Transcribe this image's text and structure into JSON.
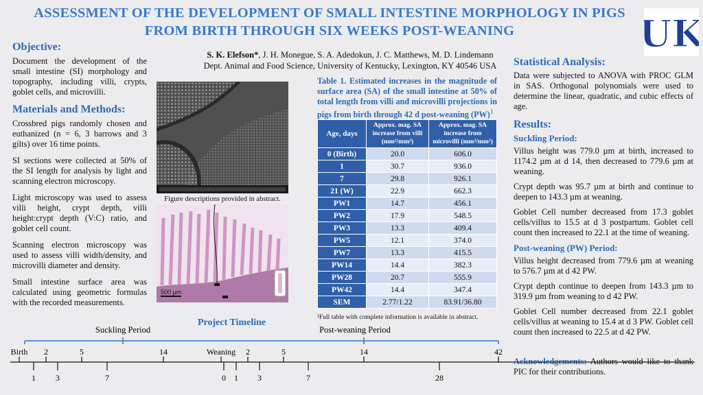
{
  "title": "ASSESSMENT OF THE DEVELOPMENT OF SMALL INTESTINE MORPHOLOGY IN PIGS FROM BIRTH THROUGH SIX WEEKS POST-WEANING",
  "authors": {
    "first_author": "S. K. Elefson*",
    "other_authors": ", J. H. Monegue, S. A. Adedokun, J. C. Matthews, M. D. Lindemann",
    "affiliation": "Dept. Animal and Food Science, University of Kentucky, Lexington, KY 40546 USA"
  },
  "logo_text": "UK",
  "objective": {
    "heading": "Objective:",
    "text": "Document the development of the small intestine (SI) morphology and topography, including villi, crypts, goblet cells, and microvilli."
  },
  "methods": {
    "heading": "Materials and Methods:",
    "paragraphs": [
      "Crossbred pigs randomly chosen and euthanized (n = 6, 3 barrows and 3 gilts) over 16 time points.",
      "SI sections were collected at 50% of the SI length for analysis by light and scanning electron microscopy.",
      "Light microscopy was used to assess villi height, crypt depth, villi height:crypt depth (V:C) ratio, and goblet cell count.",
      "Scanning electron microscopy was used to assess villi width/density, and microvilli diameter and density.",
      "Small intestine surface area was calculated using geometric formulas with the recorded measurements."
    ]
  },
  "figure": {
    "caption": "Figure descriptions provided in abstract.",
    "scale_label": "500 µm"
  },
  "table": {
    "caption": "Table 1. Estimated increases in the magnitude of surface area (SA) of the small intestine at 50% of total length from villi and microvilli projections in pigs from birth through 42 d post-weaning (PW)",
    "caption_sup": "1",
    "headers": [
      "Age, days",
      "Approx. mag. SA increase from villi (mm²/mm²)",
      "Approx. mag. SA increase from microvilli (mm²/mm²)"
    ],
    "rows": [
      [
        "0 (Birth)",
        "20.0",
        "606.0"
      ],
      [
        "1",
        "30.7",
        "936.0"
      ],
      [
        "7",
        "29.8",
        "926.1"
      ],
      [
        "21 (W)",
        "22.9",
        "662.3"
      ],
      [
        "PW1",
        "14.7",
        "456.1"
      ],
      [
        "PW2",
        "17.9",
        "548.5"
      ],
      [
        "PW3",
        "13.3",
        "409.4"
      ],
      [
        "PW5",
        "12.1",
        "374.0"
      ],
      [
        "PW7",
        "13.3",
        "415.5"
      ],
      [
        "PW14",
        "14.4",
        "382.3"
      ],
      [
        "PW28",
        "20.7",
        "555.9"
      ],
      [
        "PW42",
        "14.4",
        "347.4"
      ],
      [
        "SEM",
        "2.77/1.22",
        "83.91/36.80"
      ]
    ],
    "footnote": "¹Full table with complete information is available in abstract."
  },
  "stats": {
    "heading": "Statistical Analysis:",
    "text": "Data were subjected to ANOVA with PROC GLM in SAS. Orthogonal polynomials were used to determine the linear, quadratic, and cubic effects of age."
  },
  "results": {
    "heading": "Results:",
    "suckling_heading": "Suckling Period:",
    "suckling": [
      "Villus height was 779.0 µm at birth, increased to 1174.2 µm at d 14, then decreased to 779.6 µm at weaning.",
      "Crypt depth was 95.7 µm at birth and continue to deepen to 143.3 µm at weaning.",
      "Goblet Cell number decreased from 17.3 goblet cells/villus to 15.5 at d 3 postpartum. Goblet cell count then increased to 22.1  at the time of weaning."
    ],
    "postweaning_heading": "Post-weaning (PW) Period:",
    "postweaning": [
      "Villus height decreased from 779.6 µm at weaning to 576.7 µm at d 42 PW.",
      "Crypt depth continue to deepen from 143.3 µm to 319.9 µm from weaning to d 42 PW.",
      "Goblet Cell number decreased from 22.1 goblet cells/villus at weaning to 15.4 at d 3 PW. Goblet cell count then increased to 22.5 at d 42 PW."
    ]
  },
  "ack": {
    "heading": "Acknowledgements:",
    "text": " Authors would like to thank PIC for their contributions."
  },
  "timeline": {
    "title": "Project Timeline",
    "suckling_label": "Suckling Period",
    "postweaning_label": "Post-weaning Period",
    "top_labels": [
      "Birth",
      "2",
      "5",
      "14",
      "Weaning",
      "2",
      "5",
      "14",
      "42"
    ],
    "bottom_labels": [
      "1",
      "3",
      "7",
      "0",
      "1",
      "3",
      "7",
      "28"
    ]
  },
  "colors": {
    "title": "#3b78c8",
    "heading": "#2f69b3",
    "table_header": "#2f5fa8",
    "logo": "#1f3f94"
  }
}
